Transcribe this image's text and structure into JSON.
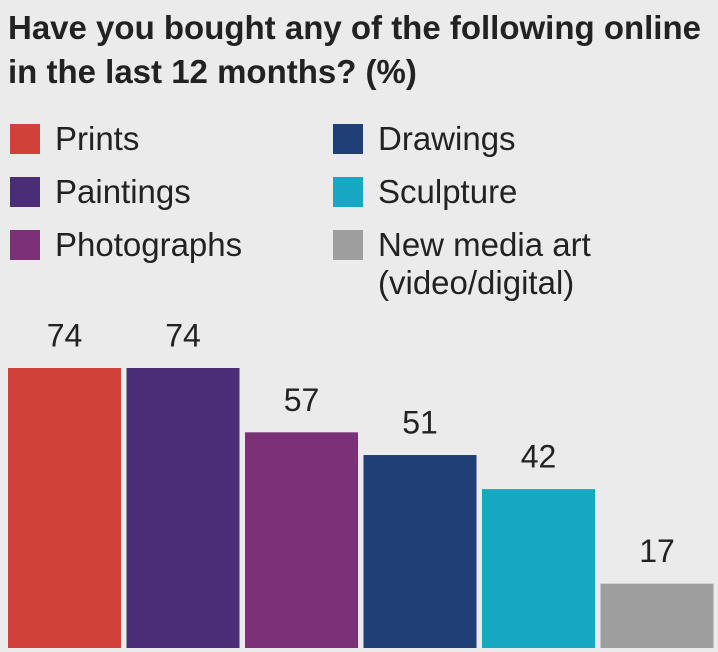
{
  "chart_data": {
    "type": "bar",
    "title": "Have you bought any of the following online in the last 12 months? (%)",
    "series": [
      {
        "name": "Prints",
        "color": "#d0413a",
        "values": [
          74
        ]
      },
      {
        "name": "Paintings",
        "color": "#4b2d77",
        "values": [
          74
        ]
      },
      {
        "name": "Photographs",
        "color": "#7a3177",
        "values": [
          57
        ]
      },
      {
        "name": "Drawings",
        "color": "#213f77",
        "values": [
          51
        ]
      },
      {
        "name": "Sculpture",
        "color": "#16a8c3",
        "values": [
          42
        ]
      },
      {
        "name": "New media art (video/digital)",
        "color": "#9e9e9e",
        "values": [
          17
        ]
      }
    ]
  }
}
